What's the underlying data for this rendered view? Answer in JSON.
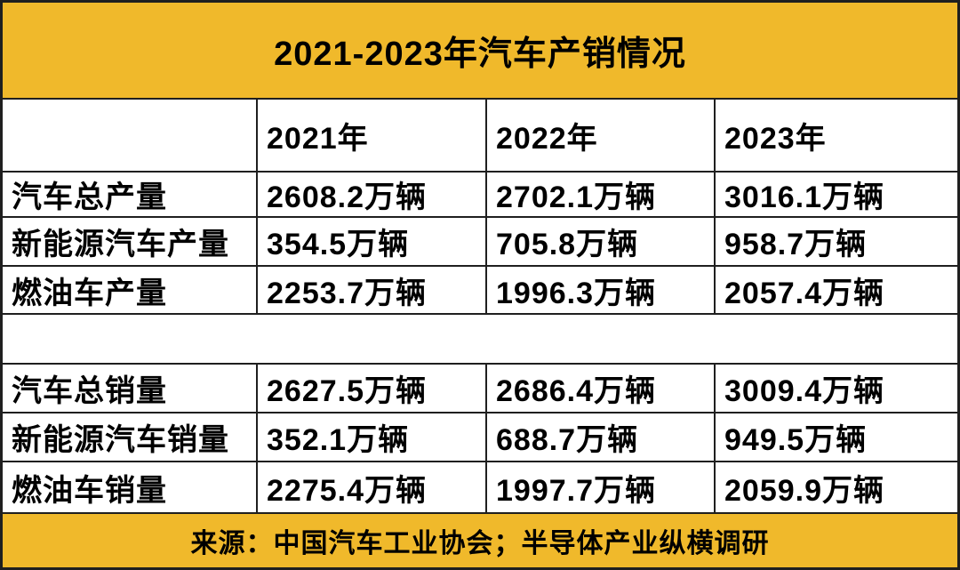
{
  "title": "2021-2023年汽车产销情况",
  "colors": {
    "accent_yellow": "#F0B92B",
    "border_line": "#1f1f1f",
    "text_ink": "#000000",
    "cell_background": "#ffffff"
  },
  "table": {
    "header": [
      "",
      "2021年",
      "2022年",
      "2023年"
    ],
    "production_rows": [
      {
        "label": "汽车总产量",
        "values": [
          "2608.2万辆",
          "2702.1万辆",
          "3016.1万辆"
        ]
      },
      {
        "label": "新能源汽车产量",
        "values": [
          "354.5万辆",
          "705.8万辆",
          "958.7万辆"
        ]
      },
      {
        "label": "燃油车产量",
        "values": [
          "2253.7万辆",
          "1996.3万辆",
          "2057.4万辆"
        ]
      }
    ],
    "sales_rows": [
      {
        "label": "汽车总销量",
        "values": [
          "2627.5万辆",
          "2686.4万辆",
          "3009.4万辆"
        ]
      },
      {
        "label": "新能源汽车销量",
        "values": [
          "352.1万辆",
          "688.7万辆",
          "949.5万辆"
        ]
      },
      {
        "label": "燃油车销量",
        "values": [
          "2275.4万辆",
          "1997.7万辆",
          "2059.9万辆"
        ]
      }
    ]
  },
  "footer": {
    "source": "来源：中国汽车工业协会；半导体产业纵横调研"
  },
  "chart_data": {
    "type": "table",
    "title": "2021-2023年汽车产销情况",
    "unit": "万辆",
    "columns": [
      "2021年",
      "2022年",
      "2023年"
    ],
    "rows": [
      {
        "label": "汽车总产量",
        "values": [
          2608.2,
          2702.1,
          3016.1
        ]
      },
      {
        "label": "新能源汽车产量",
        "values": [
          354.5,
          705.8,
          958.7
        ]
      },
      {
        "label": "燃油车产量",
        "values": [
          2253.7,
          1996.3,
          2057.4
        ]
      },
      {
        "label": "汽车总销量",
        "values": [
          2627.5,
          2686.4,
          3009.4
        ]
      },
      {
        "label": "新能源汽车销量",
        "values": [
          352.1,
          688.7,
          949.5
        ]
      },
      {
        "label": "燃油车销量",
        "values": [
          2275.4,
          1997.7,
          2059.9
        ]
      }
    ],
    "layout": {
      "grid": true,
      "spacer_between_production_and_sales": true
    },
    "source": "来源：中国汽车工业协会；半导体产业纵横调研"
  }
}
